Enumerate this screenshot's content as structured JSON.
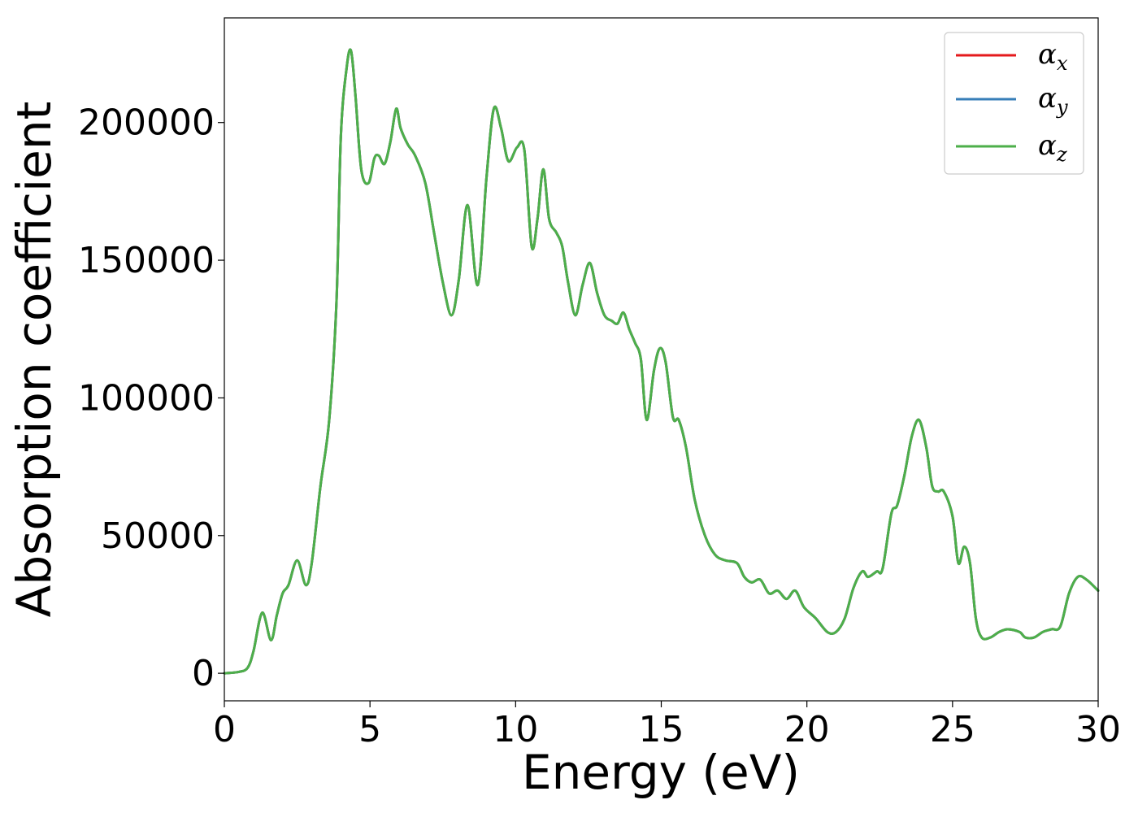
{
  "chart_data": {
    "type": "line",
    "xlabel": "Energy (eV)",
    "ylabel": "Absorption coefficient",
    "xlim": [
      0,
      30
    ],
    "ylim": [
      -10000,
      238000
    ],
    "xticks": [
      0,
      5,
      10,
      15,
      20,
      25,
      30
    ],
    "xtick_labels": [
      "0",
      "5",
      "10",
      "15",
      "20",
      "25",
      "30"
    ],
    "yticks": [
      0,
      50000,
      100000,
      150000,
      200000
    ],
    "ytick_labels": [
      "0",
      "50000",
      "100000",
      "150000",
      "200000"
    ],
    "grid": false,
    "legend_position": "top-right",
    "x": [
      0,
      0.5,
      0.8,
      1.0,
      1.3,
      1.6,
      1.8,
      2.0,
      2.2,
      2.5,
      2.8,
      3.0,
      3.3,
      3.6,
      3.85,
      4.0,
      4.2,
      4.35,
      4.5,
      4.7,
      4.95,
      5.15,
      5.3,
      5.5,
      5.7,
      5.9,
      6.05,
      6.3,
      6.55,
      6.9,
      7.2,
      7.5,
      7.8,
      8.05,
      8.35,
      8.7,
      9.0,
      9.25,
      9.5,
      9.75,
      10.05,
      10.3,
      10.55,
      10.75,
      10.95,
      11.15,
      11.4,
      11.6,
      11.8,
      12.05,
      12.3,
      12.55,
      12.8,
      13.05,
      13.3,
      13.5,
      13.7,
      13.9,
      14.1,
      14.3,
      14.5,
      14.75,
      14.95,
      15.15,
      15.4,
      15.6,
      15.85,
      16.15,
      16.5,
      16.85,
      17.2,
      17.6,
      17.85,
      18.1,
      18.4,
      18.7,
      19.0,
      19.3,
      19.6,
      19.9,
      20.3,
      20.7,
      21.0,
      21.3,
      21.6,
      21.9,
      22.1,
      22.4,
      22.6,
      22.9,
      23.1,
      23.35,
      23.6,
      23.85,
      24.1,
      24.3,
      24.5,
      24.7,
      25.0,
      25.2,
      25.4,
      25.6,
      25.8,
      26.0,
      26.3,
      26.6,
      26.9,
      27.3,
      27.5,
      27.8,
      28.1,
      28.4,
      28.7,
      29.0,
      29.3,
      29.6,
      30.0
    ],
    "series": [
      {
        "name": "αx",
        "color": "#e41a1c"
      },
      {
        "name": "αy",
        "color": "#377eb8"
      },
      {
        "name": "αz",
        "color": "#4daf4a",
        "values": [
          0,
          500,
          2000,
          8000,
          22000,
          12000,
          21000,
          29000,
          32000,
          41000,
          32000,
          40000,
          68000,
          92000,
          135000,
          195000,
          220000,
          226000,
          210000,
          183000,
          178000,
          187000,
          188000,
          185000,
          193000,
          205000,
          198000,
          192000,
          188000,
          178000,
          160000,
          142000,
          130000,
          143000,
          170000,
          141000,
          180000,
          205000,
          198000,
          186000,
          191000,
          190000,
          155000,
          165000,
          183000,
          165000,
          160000,
          155000,
          142000,
          130000,
          141000,
          149000,
          138000,
          130000,
          128000,
          127000,
          131000,
          125000,
          120000,
          114000,
          92000,
          110000,
          118000,
          113000,
          93000,
          92000,
          82000,
          63000,
          50000,
          43000,
          41000,
          40000,
          35000,
          33000,
          34000,
          29000,
          30000,
          27000,
          30000,
          24000,
          20000,
          15000,
          15000,
          20000,
          31000,
          37000,
          35000,
          37000,
          38000,
          58000,
          61000,
          72000,
          86000,
          92000,
          82000,
          68000,
          66000,
          66000,
          57000,
          40000,
          46000,
          40000,
          20000,
          13000,
          13000,
          15000,
          16000,
          15000,
          13000,
          13000,
          15000,
          16000,
          17000,
          29000,
          35000,
          34000,
          30000
        ]
      }
    ]
  }
}
